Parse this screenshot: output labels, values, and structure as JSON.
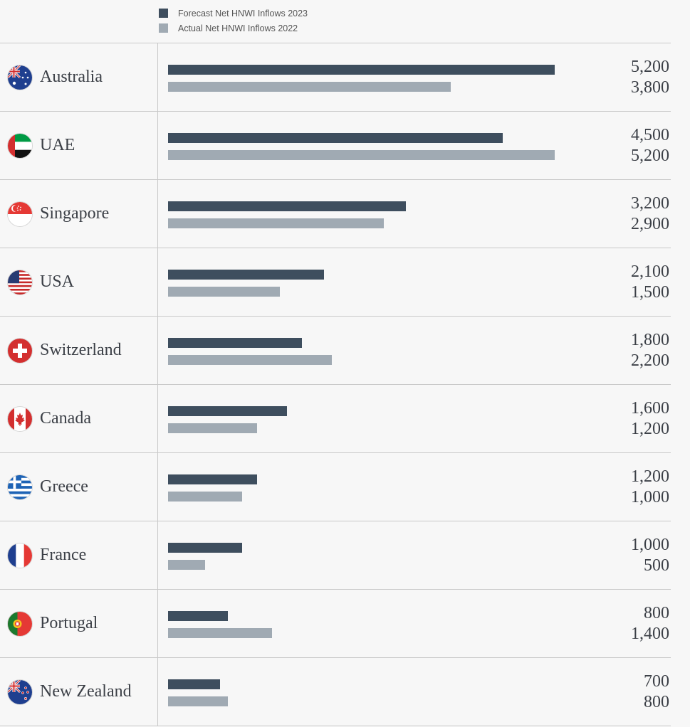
{
  "colors": {
    "forecast": "#3e4e5e",
    "actual": "#a0aab3"
  },
  "chart_data": {
    "type": "bar",
    "orientation": "horizontal",
    "categories": [
      "Australia",
      "UAE",
      "Singapore",
      "USA",
      "Switzerland",
      "Canada",
      "Greece",
      "France",
      "Portugal",
      "New Zealand"
    ],
    "flags": [
      "australia-flag-icon",
      "uae-flag-icon",
      "singapore-flag-icon",
      "usa-flag-icon",
      "switzerland-flag-icon",
      "canada-flag-icon",
      "greece-flag-icon",
      "france-flag-icon",
      "portugal-flag-icon",
      "new-zealand-flag-icon"
    ],
    "series": [
      {
        "name": "Forecast Net HNWI Inflows 2023",
        "values": [
          5200,
          4500,
          3200,
          2100,
          1800,
          1600,
          1200,
          1000,
          800,
          700
        ]
      },
      {
        "name": "Actual Net HNWI Inflows 2022",
        "values": [
          3800,
          5200,
          2900,
          1500,
          2200,
          1200,
          1000,
          500,
          1400,
          800
        ]
      }
    ],
    "value_labels": [
      [
        "5,200",
        "4,500",
        "3,200",
        "2,100",
        "1,800",
        "1,600",
        "1,200",
        "1,000",
        "800",
        "700"
      ],
      [
        "3,800",
        "5,200",
        "2,900",
        "1,500",
        "2,200",
        "1,200",
        "1,000",
        "500",
        "1,400",
        "800"
      ]
    ],
    "xlim": [
      0,
      5200
    ],
    "legend_position": "top-left",
    "grid": false
  }
}
